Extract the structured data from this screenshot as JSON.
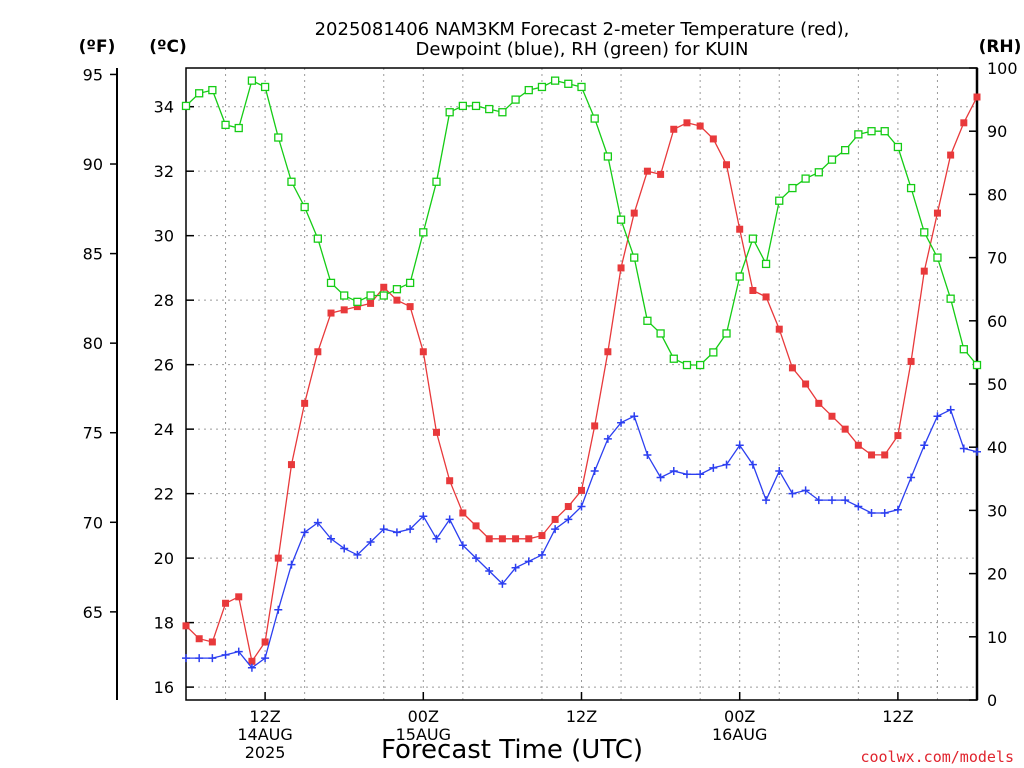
{
  "colors": {
    "temperature": "#e8393b",
    "dewpoint": "#2c3ff0",
    "rh": "#15cc15",
    "grid": "#9a9a9a"
  },
  "chart_data": {
    "type": "line",
    "title_lines": [
      "2025081406 NAM3KM Forecast 2-meter Temperature (red),",
      "Dewpoint (blue), RH (green) for KUIN"
    ],
    "credit": "coolwx.com/models",
    "xlabel": "Forecast Time (UTC)",
    "x_unit": "forecast hour",
    "xlim": [
      0,
      60
    ],
    "x_ticks": [
      {
        "x": 6,
        "labels": [
          "12Z",
          "14AUG",
          "2025"
        ]
      },
      {
        "x": 18,
        "labels": [
          "00Z",
          "15AUG"
        ]
      },
      {
        "x": 30,
        "labels": [
          "12Z"
        ]
      },
      {
        "x": 42,
        "labels": [
          "00Z",
          "16AUG"
        ]
      },
      {
        "x": 54,
        "labels": [
          "12Z"
        ]
      }
    ],
    "x_minor_grid": [
      3,
      9,
      15,
      21,
      27,
      33,
      39,
      45,
      51,
      57
    ],
    "axes": {
      "celsius": {
        "label": "(ºC)",
        "ylim": [
          15.6,
          35.2
        ],
        "ticks": [
          16,
          18,
          20,
          22,
          24,
          26,
          28,
          30,
          32,
          34
        ]
      },
      "fahrenheit": {
        "label": "(ºF)",
        "ticks": [
          65,
          70,
          75,
          80,
          85,
          90,
          95
        ]
      },
      "rh": {
        "label": "(RH)",
        "ylim": [
          0,
          100
        ],
        "ticks": [
          0,
          10,
          20,
          30,
          40,
          50,
          60,
          70,
          80,
          90,
          100
        ]
      }
    },
    "grid": true,
    "series": [
      {
        "key": "temperature",
        "unit": "°C",
        "marker": "filled-square",
        "x": [
          0,
          1,
          2,
          3,
          4,
          5,
          6,
          7,
          8,
          9,
          10,
          11,
          12,
          13,
          14,
          15,
          16,
          17,
          18,
          19,
          20,
          21,
          22,
          23,
          24,
          25,
          26,
          27,
          28,
          29,
          30,
          31,
          32,
          33,
          34,
          35,
          36,
          37,
          38,
          39,
          40,
          41,
          42,
          43,
          44,
          45,
          46,
          47,
          48,
          49,
          50,
          51,
          52,
          53,
          54,
          55,
          56,
          57,
          58,
          59,
          60
        ],
        "values": [
          17.9,
          17.5,
          17.4,
          18.6,
          18.8,
          16.8,
          17.4,
          20.0,
          22.9,
          24.8,
          26.4,
          27.6,
          27.7,
          27.8,
          27.9,
          28.4,
          28.0,
          27.8,
          26.4,
          23.9,
          22.4,
          21.4,
          21.0,
          20.6,
          20.6,
          20.6,
          20.6,
          20.7,
          21.2,
          21.6,
          22.1,
          24.1,
          26.4,
          29.0,
          30.7,
          32.0,
          31.9,
          33.3,
          33.5,
          33.4,
          33.0,
          32.2,
          30.2,
          28.3,
          28.1,
          27.1,
          25.9,
          25.4,
          24.8,
          24.4,
          24.0,
          23.5,
          23.2,
          23.2,
          23.8,
          26.1,
          28.9,
          30.7,
          32.5,
          33.5,
          34.3
        ]
      },
      {
        "key": "dewpoint",
        "unit": "°C",
        "marker": "plus",
        "x": [
          0,
          1,
          2,
          3,
          4,
          5,
          6,
          7,
          8,
          9,
          10,
          11,
          12,
          13,
          14,
          15,
          16,
          17,
          18,
          19,
          20,
          21,
          22,
          23,
          24,
          25,
          26,
          27,
          28,
          29,
          30,
          31,
          32,
          33,
          34,
          35,
          36,
          37,
          38,
          39,
          40,
          41,
          42,
          43,
          44,
          45,
          46,
          47,
          48,
          49,
          50,
          51,
          52,
          53,
          54,
          55,
          56,
          57,
          58,
          59,
          60
        ],
        "values": [
          16.9,
          16.9,
          16.9,
          17.0,
          17.1,
          16.6,
          16.9,
          18.4,
          19.8,
          20.8,
          21.1,
          20.6,
          20.3,
          20.1,
          20.5,
          20.9,
          20.8,
          20.9,
          21.3,
          20.6,
          21.2,
          20.4,
          20.0,
          19.6,
          19.2,
          19.7,
          19.9,
          20.1,
          20.9,
          21.2,
          21.6,
          22.7,
          23.7,
          24.2,
          24.4,
          23.2,
          22.5,
          22.7,
          22.6,
          22.6,
          22.8,
          22.9,
          23.5,
          22.9,
          21.8,
          22.7,
          22.0,
          22.1,
          21.8,
          21.8,
          21.8,
          21.6,
          21.4,
          21.4,
          21.5,
          22.5,
          23.5,
          24.4,
          24.6,
          23.4,
          23.3
        ]
      },
      {
        "key": "rh",
        "unit": "%",
        "marker": "open-square",
        "x": [
          0,
          1,
          2,
          3,
          4,
          5,
          6,
          7,
          8,
          9,
          10,
          11,
          12,
          13,
          14,
          15,
          16,
          17,
          18,
          19,
          20,
          21,
          22,
          23,
          24,
          25,
          26,
          27,
          28,
          29,
          30,
          31,
          32,
          33,
          34,
          35,
          36,
          37,
          38,
          39,
          40,
          41,
          42,
          43,
          44,
          45,
          46,
          47,
          48,
          49,
          50,
          51,
          52,
          53,
          54,
          55,
          56,
          57,
          58,
          59,
          60
        ],
        "values": [
          94,
          96,
          96.5,
          91,
          90.5,
          98,
          97,
          89,
          82,
          78,
          73,
          66,
          64,
          63,
          64,
          64,
          65,
          66,
          74,
          82,
          93,
          94,
          94,
          93.5,
          93,
          95,
          96.5,
          97,
          98,
          97.5,
          97,
          92,
          86,
          76,
          70,
          60,
          58,
          54,
          53,
          53,
          55,
          58,
          67,
          73,
          69,
          79,
          81,
          82.5,
          83.5,
          85.5,
          87,
          89.5,
          90,
          90,
          87.5,
          81,
          74,
          70,
          63.5,
          55.5,
          53
        ]
      }
    ]
  }
}
